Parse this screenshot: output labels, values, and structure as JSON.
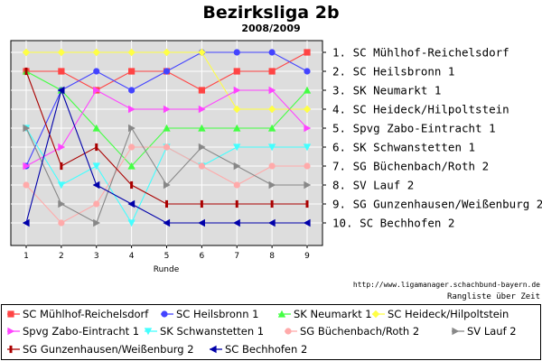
{
  "chart_data": {
    "type": "line",
    "title": "Bezirksliga 2b",
    "subtitle": "2008/2009",
    "xlabel": "Runde",
    "credit": "http://www.ligamanager.schachbund-bayern.de",
    "caption": "Rangliste über Zeit",
    "x": [
      1,
      2,
      3,
      4,
      5,
      6,
      7,
      8,
      9
    ],
    "x_ticks": [
      "1",
      "2",
      "3",
      "4",
      "5",
      "6",
      "7",
      "8",
      "9"
    ],
    "ylim": [
      1,
      10
    ],
    "y_inverted": true,
    "grid": true,
    "legend_position": "bottom",
    "rank_labels": [
      "1.  SC Mühlhof-Reichelsdorf",
      "2.  SC Heilsbronn 1",
      "3.  SK Neumarkt 1",
      "4.  SC Heideck/Hilpoltstein",
      "5.  Spvg Zabo-Eintracht 1",
      "6.  SK Schwanstetten 1",
      "7.  SG Büchenbach/Roth 2",
      "8.  SV Lauf 2",
      "9.  SG Gunzenhausen/Weißenburg 2",
      "10. SC Bechhofen 2"
    ],
    "series": [
      {
        "name": "SC Mühlhof-Reichelsdorf",
        "color": "#ff4444",
        "marker": "square",
        "values": [
          2,
          2,
          3,
          2,
          2,
          3,
          2,
          2,
          1
        ]
      },
      {
        "name": "SC Heilsbronn 1",
        "color": "#4444ff",
        "marker": "circle",
        "values": [
          7,
          3,
          2,
          3,
          2,
          1,
          1,
          1,
          2
        ]
      },
      {
        "name": "SK Neumarkt 1",
        "color": "#44ff44",
        "marker": "triangle-up",
        "values": [
          2,
          3,
          5,
          7,
          5,
          5,
          5,
          5,
          3
        ]
      },
      {
        "name": "SC Heideck/Hilpoltstein",
        "color": "#ffff44",
        "marker": "diamond",
        "values": [
          1,
          1,
          1,
          1,
          1,
          1,
          4,
          4,
          4
        ]
      },
      {
        "name": "Spvg Zabo-Eintracht 1",
        "color": "#ff44ff",
        "marker": "triangle-right",
        "values": [
          7,
          6,
          3,
          4,
          4,
          4,
          3,
          3,
          5
        ]
      },
      {
        "name": "SK Schwanstetten 1",
        "color": "#44ffff",
        "marker": "triangle-down",
        "values": [
          5,
          8,
          7,
          10,
          6,
          7,
          6,
          6,
          6
        ]
      },
      {
        "name": "SG Büchenbach/Roth 2",
        "color": "#ffaaaa",
        "marker": "circle",
        "values": [
          8,
          10,
          9,
          6,
          6,
          7,
          8,
          7,
          7
        ]
      },
      {
        "name": "SV Lauf 2",
        "color": "#888888",
        "marker": "triangle-right",
        "values": [
          5,
          9,
          10,
          5,
          8,
          6,
          7,
          8,
          8
        ]
      },
      {
        "name": "SG Gunzenhausen/Weißenburg 2",
        "color": "#aa0000",
        "marker": "tick",
        "values": [
          2,
          7,
          6,
          8,
          9,
          9,
          9,
          9,
          9
        ]
      },
      {
        "name": "SC Bechhofen 2",
        "color": "#0000aa",
        "marker": "triangle-left",
        "values": [
          10,
          3,
          8,
          9,
          10,
          10,
          10,
          10,
          10
        ]
      }
    ]
  }
}
